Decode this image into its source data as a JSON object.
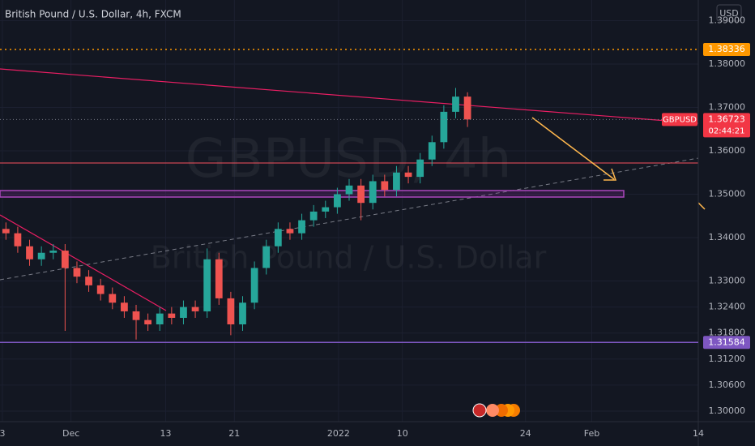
{
  "chart_data": {
    "type": "candlestick",
    "title": "British Pound / U.S. Dollar, 4h, FXCM",
    "symbol": "GBPUSD",
    "watermark": "GBPUSD, 4h",
    "watermark_subtitle": "British Pound / U.S. Dollar",
    "currency": "USD",
    "up_color": "#26a69a",
    "down_color": "#ef5350",
    "grid": true,
    "x": [
      0.5,
      1.5,
      2.5,
      3.5,
      4.5,
      5.5,
      6.5,
      7.5,
      8.5,
      9.5,
      10.5,
      11.5,
      12.5,
      13.5,
      14.5,
      15.5,
      16.5,
      17.5,
      18.5,
      19.5,
      20.5,
      21.5,
      22.5,
      23.5,
      24.5,
      25.5,
      26.5,
      27.5,
      28.5,
      29.5,
      30.5,
      31.5,
      32.5,
      33.5,
      34.5,
      35.5,
      36.5,
      37.5,
      38.5,
      39.5
    ],
    "open": [
      1.342,
      1.341,
      1.338,
      1.335,
      1.3365,
      1.337,
      1.333,
      1.331,
      1.329,
      1.327,
      1.325,
      1.323,
      1.321,
      1.32,
      1.3225,
      1.3215,
      1.324,
      1.323,
      1.335,
      1.326,
      1.32,
      1.325,
      1.333,
      1.338,
      1.342,
      1.341,
      1.344,
      1.346,
      1.347,
      1.35,
      1.352,
      1.348,
      1.353,
      1.351,
      1.355,
      1.354,
      1.358,
      1.362,
      1.369,
      1.3725
    ],
    "high": [
      1.3435,
      1.3425,
      1.3395,
      1.338,
      1.3385,
      1.3385,
      1.3345,
      1.3325,
      1.3305,
      1.3285,
      1.3265,
      1.3245,
      1.3225,
      1.324,
      1.324,
      1.3255,
      1.3255,
      1.3375,
      1.3365,
      1.3275,
      1.3265,
      1.3345,
      1.3395,
      1.3435,
      1.3435,
      1.3455,
      1.3475,
      1.3485,
      1.3515,
      1.3535,
      1.3535,
      1.3545,
      1.3545,
      1.3565,
      1.3565,
      1.3595,
      1.3635,
      1.3705,
      1.3745,
      1.3735
    ],
    "low": [
      1.3395,
      1.3365,
      1.3335,
      1.3335,
      1.335,
      1.3185,
      1.3295,
      1.3275,
      1.3255,
      1.3235,
      1.3215,
      1.3165,
      1.3185,
      1.3185,
      1.32,
      1.32,
      1.3215,
      1.3215,
      1.3245,
      1.3175,
      1.3185,
      1.3235,
      1.3315,
      1.3365,
      1.3395,
      1.3395,
      1.3425,
      1.3445,
      1.3455,
      1.3485,
      1.344,
      1.3465,
      1.3495,
      1.3495,
      1.3525,
      1.3525,
      1.3565,
      1.3605,
      1.3675,
      1.3655
    ],
    "close": [
      1.341,
      1.338,
      1.335,
      1.3365,
      1.337,
      1.333,
      1.331,
      1.329,
      1.327,
      1.325,
      1.323,
      1.321,
      1.32,
      1.3225,
      1.3215,
      1.324,
      1.323,
      1.335,
      1.326,
      1.32,
      1.325,
      1.333,
      1.338,
      1.342,
      1.341,
      1.344,
      1.346,
      1.347,
      1.35,
      1.352,
      1.348,
      1.353,
      1.351,
      1.355,
      1.354,
      1.358,
      1.362,
      1.369,
      1.3725,
      1.36723
    ],
    "xlim": [
      0,
      59
    ],
    "xticks": [
      {
        "value": 0.2,
        "label": "3"
      },
      {
        "value": 6,
        "label": "Dec"
      },
      {
        "value": 14,
        "label": "13"
      },
      {
        "value": 19.8,
        "label": "21"
      },
      {
        "value": 28.6,
        "label": "2022"
      },
      {
        "value": 34,
        "label": "10"
      },
      {
        "value": 44.4,
        "label": "24"
      },
      {
        "value": 50,
        "label": "Feb"
      },
      {
        "value": 59,
        "label": "14"
      }
    ],
    "ylim": [
      1.29757,
      1.39477
    ],
    "yticks": [
      {
        "value": 1.39,
        "label": "1.39000"
      },
      {
        "value": 1.38,
        "label": "1.38000"
      },
      {
        "value": 1.37,
        "label": "1.37000"
      },
      {
        "value": 1.36,
        "label": "1.36000"
      },
      {
        "value": 1.35,
        "label": "1.35000"
      },
      {
        "value": 1.34,
        "label": "1.34000"
      },
      {
        "value": 1.33,
        "label": "1.33000"
      },
      {
        "value": 1.324,
        "label": "1.32400"
      },
      {
        "value": 1.318,
        "label": "1.31800"
      },
      {
        "value": 1.312,
        "label": "1.31200"
      },
      {
        "value": 1.306,
        "label": "1.30600"
      },
      {
        "value": 1.3,
        "label": "1.30000"
      }
    ],
    "levels": [
      {
        "value": 1.38336,
        "color": "#ff9800",
        "style": "dotted"
      },
      {
        "value": 1.31584,
        "color": "#7e57c2",
        "style": "solid"
      }
    ],
    "last_price": 1.36723,
    "countdown": "02:44:21",
    "last_price_color": "#f23645"
  }
}
